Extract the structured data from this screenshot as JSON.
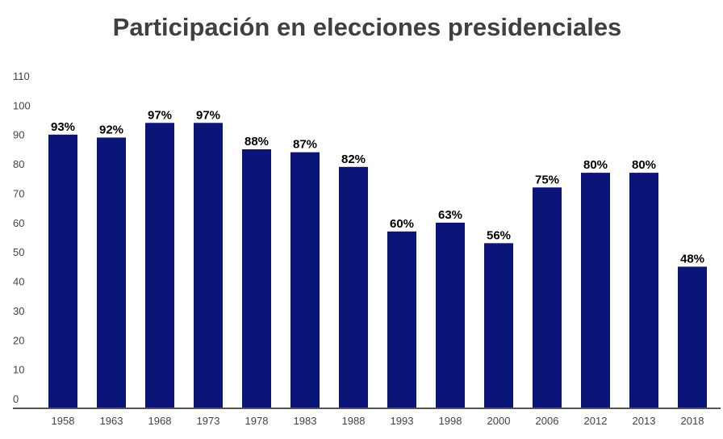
{
  "chart_data": {
    "type": "bar",
    "title": "Participación en elecciones presidenciales",
    "xlabel": "",
    "ylabel": "",
    "ylim": [
      0,
      110
    ],
    "yticks": [
      0,
      10,
      20,
      30,
      40,
      50,
      60,
      70,
      80,
      90,
      100,
      110
    ],
    "grid": false,
    "legend": "none",
    "bar_color": "#0a1577",
    "categories": [
      "1958",
      "1963",
      "1968",
      "1973",
      "1978",
      "1983",
      "1988",
      "1993",
      "1998",
      "2000",
      "2006",
      "2012",
      "2013",
      "2018"
    ],
    "values": [
      93,
      92,
      97,
      97,
      88,
      87,
      82,
      60,
      63,
      56,
      75,
      80,
      80,
      48
    ],
    "data_labels": [
      "93%",
      "92%",
      "97%",
      "97%",
      "88%",
      "87%",
      "82%",
      "60%",
      "63%",
      "56%",
      "75%",
      "80%",
      "80%",
      "48%"
    ]
  }
}
